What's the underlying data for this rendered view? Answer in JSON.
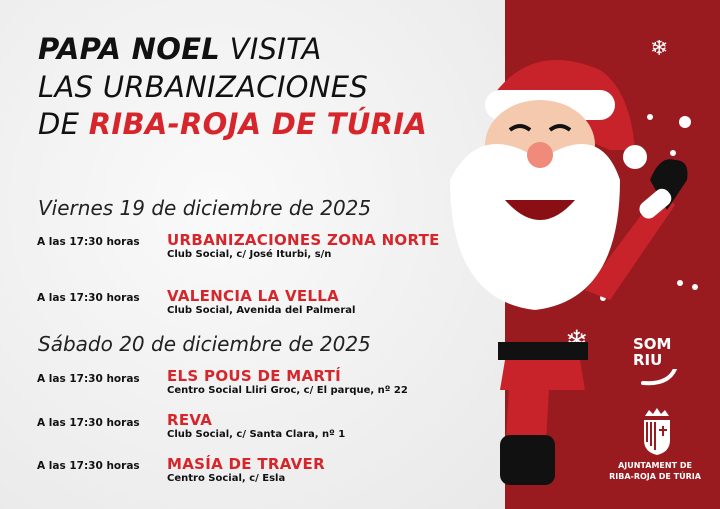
{
  "title": {
    "line1_bold": "PAPA NOEL",
    "line1_rest": " VISITA",
    "line2": "LAS URBANIZACIONES",
    "line3_prefix": "DE ",
    "line3_red": "RIBA-ROJA DE TÚRIA"
  },
  "days": [
    {
      "date": "Viernes 19 de diciembre de 2025",
      "events": [
        {
          "time": "A las 17:30 horas",
          "place": "URBANIZACIONES ZONA NORTE",
          "address": "Club Social, c/ José Iturbi, s/n"
        },
        {
          "time": "A las 17:30 horas",
          "place": "VALENCIA LA VELLA",
          "address": "Club Social, Avenida del Palmeral"
        }
      ]
    },
    {
      "date": "Sábado 20 de diciembre de 2025",
      "events": [
        {
          "time": "A las 17:30 horas",
          "place": "ELS POUS DE MARTÍ",
          "address": "Centro Social Lliri Groc, c/ El parque, nº 22"
        },
        {
          "time": "A las 17:30 horas",
          "place": "REVA",
          "address": "Club Social, c/ Santa Clara, nº 1"
        },
        {
          "time": "A las 17:30 horas",
          "place": "MASÍA DE TRAVER",
          "address": "Centro Social, c/ Esla"
        }
      ]
    }
  ],
  "logos": {
    "som_line1": "SOM",
    "som_line2": "RIU",
    "ajuntament_line1": "AJUNTAMENT DE",
    "ajuntament_line2": "RIBA-ROJA DE TÚRIA"
  },
  "colors": {
    "accent_red": "#d6262b",
    "panel_red": "#9a1b1f"
  }
}
